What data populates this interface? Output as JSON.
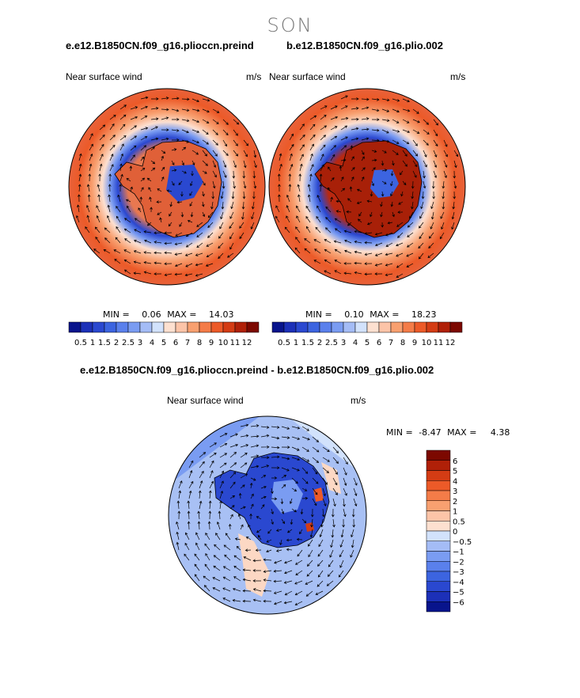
{
  "figure": {
    "season": "SON",
    "left_case": "e.e12.B1850CN.f09_g16.plioccn.preind",
    "right_case": "b.e12.B1850CN.f09_g16.plio.002",
    "diff_title": "e.e12.B1850CN.f09_g16.plioccn.preind - b.e12.B1850CN.f09_g16.plio.002"
  },
  "panels": {
    "left": {
      "variable": "Near surface wind",
      "units": "m/s",
      "min_label": "MIN =",
      "min": "0.06",
      "max_label": "MAX =",
      "max": "14.03"
    },
    "right": {
      "variable": "Near surface wind",
      "units": "m/s",
      "min_label": "MIN =",
      "min": "0.10",
      "max_label": "MAX =",
      "max": "18.23"
    },
    "diff": {
      "variable": "Near surface wind",
      "units": "m/s",
      "min_label": "MIN =",
      "min": "-8.47",
      "max_label": "MAX =",
      "max": "4.38"
    }
  },
  "colorbars": {
    "abs": {
      "levels": [
        "0.5",
        "1",
        "1.5",
        "2",
        "2.5",
        "3",
        "4",
        "5",
        "6",
        "7",
        "8",
        "9",
        "10",
        "11",
        "12"
      ],
      "colors": [
        "#08148c",
        "#1c30b8",
        "#2a48d0",
        "#3c64e0",
        "#5a80ec",
        "#7a9cf2",
        "#a4bcf6",
        "#d2e2fc",
        "#fde0d0",
        "#fcc4a8",
        "#f8a070",
        "#f47c48",
        "#ec5a28",
        "#d43c14",
        "#b02008",
        "#7c0800"
      ]
    },
    "diff": {
      "levels": [
        "6",
        "5",
        "4",
        "3",
        "2",
        "1",
        "0.5",
        "0",
        "−0.5",
        "−1",
        "−2",
        "−3",
        "−4",
        "−5",
        "−6"
      ],
      "colors": [
        "#7c0800",
        "#b02008",
        "#d43c14",
        "#ec5a28",
        "#f47c48",
        "#f8a070",
        "#fcc4a8",
        "#fde0d0",
        "#d2e2fc",
        "#a4bcf6",
        "#7a9cf2",
        "#5a80ec",
        "#3c64e0",
        "#2a48d0",
        "#1c30b8",
        "#08148c"
      ]
    }
  },
  "map_colors": {
    "ocean_abs": "#e8623a",
    "ocean_abs_strong": "#d84a28",
    "ring_blue": "#4a6ee0",
    "ice_abs": "#e87850",
    "ice_abs_strong": "#b82810",
    "diff_bg": "#a8c0f4",
    "diff_dark": "#2a48d0",
    "diff_pos": "#fcd8c4"
  }
}
